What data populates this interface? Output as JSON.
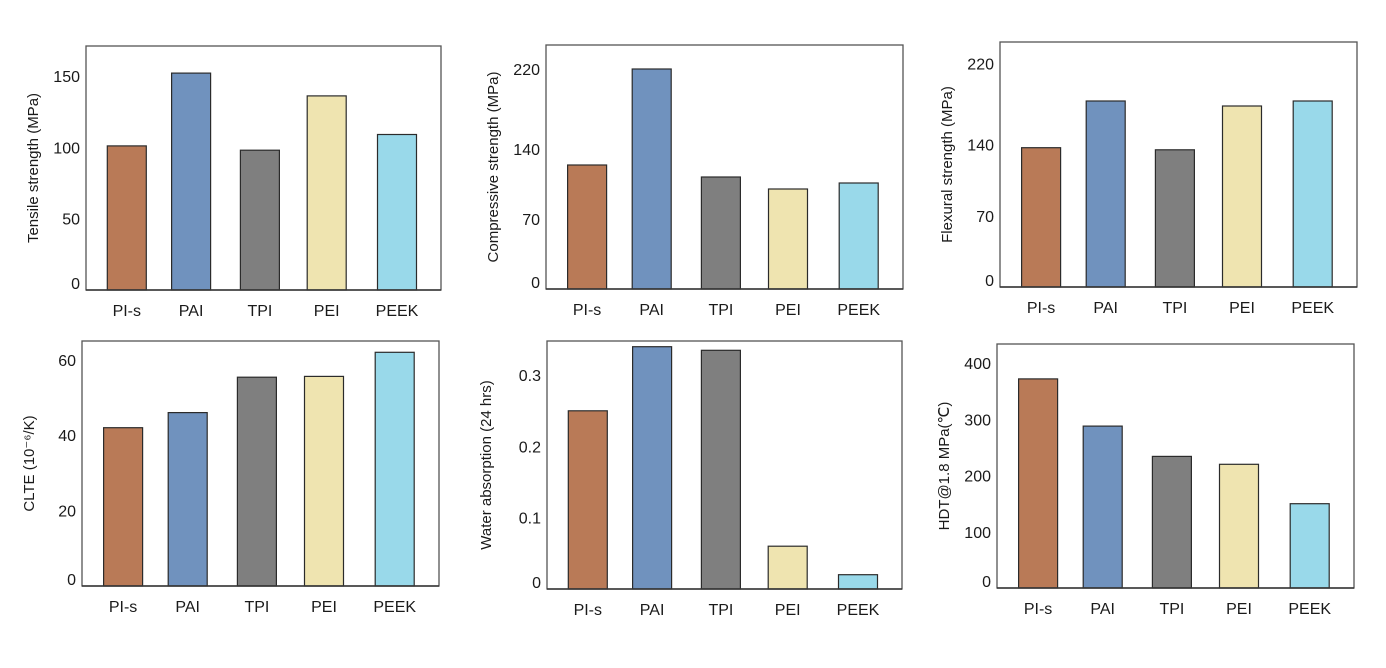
{
  "chart_data": [
    {
      "type": "bar",
      "title": "",
      "xlabel": "",
      "ylabel": "Tensile strength (MPa)",
      "categories": [
        "PI-s",
        "PAI",
        "TPI",
        "PEI",
        "PEEK"
      ],
      "values": [
        101,
        152,
        98,
        136,
        109
      ],
      "yticks": [
        0,
        50,
        100,
        150
      ],
      "ytick_labels": [
        "0",
        "50",
        "100",
        "150"
      ],
      "ylim": [
        0,
        171
      ],
      "grid": false,
      "colors": [
        "#B97A57",
        "#7092BE",
        "#7F7F7F",
        "#EFE4B0",
        "#99D9EA"
      ]
    },
    {
      "type": "bar",
      "title": "",
      "xlabel": "",
      "ylabel": "Compressive strength (MPa)",
      "categories": [
        "PI-s",
        "PAI",
        "TPI",
        "PEI",
        "PEEK"
      ],
      "values": [
        124,
        220,
        112,
        100,
        106
      ],
      "yticks": [
        0,
        70,
        140,
        220
      ],
      "ytick_labels": [
        "0",
        "70",
        "140",
        "220"
      ],
      "ylim": [
        0,
        244
      ],
      "grid": false,
      "colors": [
        "#B97A57",
        "#7092BE",
        "#7F7F7F",
        "#EFE4B0",
        "#99D9EA"
      ]
    },
    {
      "type": "bar",
      "title": "",
      "xlabel": "",
      "ylabel": "Flexural strength (MPa)",
      "categories": [
        "PI-s",
        "PAI",
        "TPI",
        "PEI",
        "PEEK"
      ],
      "values": [
        137,
        183,
        135,
        178,
        183
      ],
      "yticks": [
        0,
        70,
        140,
        220
      ],
      "ytick_labels": [
        "0",
        "70",
        "140",
        "220"
      ],
      "ylim": [
        0,
        241
      ],
      "grid": false,
      "colors": [
        "#B97A57",
        "#7092BE",
        "#7F7F7F",
        "#EFE4B0",
        "#99D9EA"
      ]
    },
    {
      "type": "bar",
      "title": "",
      "xlabel": "",
      "ylabel": "CLTE (10⁻⁶/K)",
      "categories": [
        "PI-s",
        "PAI",
        "TPI",
        "PEI",
        "PEEK"
      ],
      "values": [
        42,
        46,
        55.4,
        55.6,
        62
      ],
      "yticks": [
        0,
        20,
        40,
        60
      ],
      "ytick_labels": [
        "0",
        "20",
        "40",
        "60"
      ],
      "ylim": [
        0,
        65
      ],
      "grid": false,
      "colors": [
        "#B97A57",
        "#7092BE",
        "#7F7F7F",
        "#EFE4B0",
        "#99D9EA"
      ]
    },
    {
      "type": "bar",
      "title": "",
      "xlabel": "",
      "ylabel": "Water absorption (24 hrs)",
      "categories": [
        "PI-s",
        "PAI",
        "TPI",
        "PEI",
        "PEEK"
      ],
      "values": [
        0.25,
        0.34,
        0.335,
        0.06,
        0.02
      ],
      "yticks": [
        0,
        0.1,
        0.2,
        0.3
      ],
      "ytick_labels": [
        "0",
        "0.1",
        "0.2",
        "0.3"
      ],
      "ylim": [
        0,
        0.348
      ],
      "grid": false,
      "colors": [
        "#B97A57",
        "#7092BE",
        "#7F7F7F",
        "#EFE4B0",
        "#99D9EA"
      ]
    },
    {
      "type": "bar",
      "title": "",
      "xlabel": "",
      "ylabel": "HDT@1.8 MPa(℃)",
      "categories": [
        "PI-s",
        "PAI",
        "TPI",
        "PEI",
        "PEEK"
      ],
      "values": [
        372,
        288,
        234,
        220,
        150
      ],
      "yticks": [
        0,
        100,
        200,
        300,
        400
      ],
      "ytick_labels": [
        "0",
        "100",
        "200",
        "300",
        "400"
      ],
      "ylim": [
        0,
        434
      ],
      "grid": false,
      "colors": [
        "#B97A57",
        "#7092BE",
        "#7F7F7F",
        "#EFE4B0",
        "#99D9EA"
      ]
    }
  ]
}
